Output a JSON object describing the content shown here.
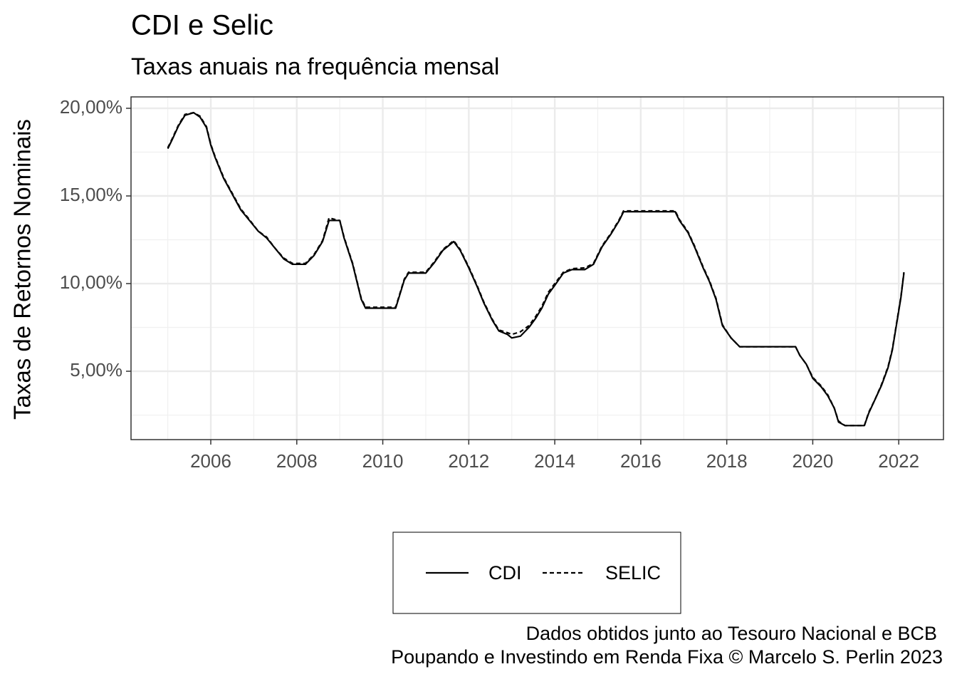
{
  "chart_data": {
    "type": "line",
    "title": "CDI e Selic",
    "subtitle": "Taxas anuais na frequência mensal",
    "y_label": "Taxas de Retornos Nominais",
    "caption": [
      "Dados obtidos junto ao Tesouro Nacional e BCB",
      "Poupando e Investindo em Renda Fixa © Marcelo S. Perlin 2023"
    ],
    "x": [
      2005.0,
      2005.1,
      2005.25,
      2005.4,
      2005.6,
      2005.75,
      2005.9,
      2006.0,
      2006.1,
      2006.3,
      2006.5,
      2006.7,
      2006.9,
      2007.1,
      2007.3,
      2007.5,
      2007.7,
      2007.9,
      2008.2,
      2008.4,
      2008.6,
      2008.75,
      2008.9,
      2009.0,
      2009.1,
      2009.3,
      2009.4,
      2009.5,
      2009.6,
      2010.0,
      2010.3,
      2010.4,
      2010.5,
      2010.6,
      2011.0,
      2011.2,
      2011.4,
      2011.55,
      2011.65,
      2011.8,
      2012.0,
      2012.2,
      2012.35,
      2012.55,
      2012.7,
      2012.9,
      2013.0,
      2013.2,
      2013.4,
      2013.55,
      2013.7,
      2013.85,
      2014.0,
      2014.2,
      2014.4,
      2014.7,
      2014.9,
      2015.1,
      2015.3,
      2015.5,
      2015.6,
      2016.0,
      2016.8,
      2016.9,
      2017.1,
      2017.25,
      2017.45,
      2017.6,
      2017.75,
      2017.9,
      2018.1,
      2018.3,
      2019.6,
      2019.7,
      2019.85,
      2020.0,
      2020.2,
      2020.35,
      2020.5,
      2020.6,
      2020.75,
      2021.2,
      2021.3,
      2021.45,
      2021.6,
      2021.75,
      2021.85,
      2021.95,
      2022.05,
      2022.12
    ],
    "series": [
      {
        "name": "CDI",
        "color": "#000000",
        "dash": "none",
        "values": [
          17.7,
          18.2,
          19.0,
          19.6,
          19.75,
          19.5,
          18.9,
          17.9,
          17.2,
          16.0,
          15.1,
          14.2,
          13.6,
          13.0,
          12.6,
          12.0,
          11.4,
          11.1,
          11.1,
          11.6,
          12.4,
          13.6,
          13.6,
          13.6,
          12.6,
          11.1,
          10.1,
          9.1,
          8.6,
          8.6,
          8.6,
          9.4,
          10.2,
          10.6,
          10.6,
          11.2,
          11.9,
          12.2,
          12.4,
          11.9,
          10.9,
          9.8,
          8.9,
          7.9,
          7.3,
          7.1,
          6.9,
          7.0,
          7.5,
          8.0,
          8.6,
          9.4,
          9.9,
          10.6,
          10.8,
          10.8,
          11.1,
          12.1,
          12.8,
          13.6,
          14.1,
          14.1,
          14.1,
          13.6,
          12.9,
          12.1,
          10.9,
          10.1,
          9.1,
          7.6,
          6.9,
          6.4,
          6.4,
          5.9,
          5.4,
          4.6,
          4.1,
          3.6,
          2.9,
          2.1,
          1.9,
          1.9,
          2.6,
          3.4,
          4.2,
          5.2,
          6.2,
          7.7,
          9.2,
          10.6
        ]
      },
      {
        "name": "SELIC",
        "color": "#000000",
        "dash": "6,4",
        "values": [
          17.75,
          18.25,
          19.05,
          19.65,
          19.75,
          19.55,
          18.95,
          17.95,
          17.25,
          16.05,
          15.15,
          14.25,
          13.65,
          13.0,
          12.65,
          12.0,
          11.45,
          11.15,
          11.15,
          11.65,
          12.45,
          13.75,
          13.65,
          13.6,
          12.65,
          11.15,
          10.15,
          9.15,
          8.65,
          8.65,
          8.65,
          9.45,
          10.25,
          10.65,
          10.65,
          11.25,
          11.95,
          12.25,
          12.45,
          11.95,
          10.95,
          9.85,
          8.95,
          7.95,
          7.35,
          7.2,
          7.1,
          7.25,
          7.6,
          8.1,
          8.7,
          9.5,
          10.0,
          10.65,
          10.85,
          10.9,
          11.15,
          12.15,
          12.85,
          13.65,
          14.15,
          14.15,
          14.15,
          13.65,
          12.95,
          12.15,
          10.95,
          10.15,
          9.15,
          7.65,
          6.9,
          6.4,
          6.4,
          5.9,
          5.4,
          4.65,
          4.15,
          3.65,
          2.9,
          2.15,
          1.9,
          1.9,
          2.65,
          3.4,
          4.25,
          5.25,
          6.25,
          7.75,
          9.25,
          10.65
        ]
      }
    ],
    "xlim": [
      2004.145,
      2023.04
    ],
    "xticks": [
      2006,
      2008,
      2010,
      2012,
      2014,
      2016,
      2018,
      2020,
      2022
    ],
    "ylim": [
      1.1,
      20.65
    ],
    "yticks": [
      {
        "value": 5,
        "label": "5,00%"
      },
      {
        "value": 10,
        "label": "10,00%"
      },
      {
        "value": 15,
        "label": "15,00%"
      },
      {
        "value": 20,
        "label": "20,00%"
      }
    ],
    "grid": true,
    "legend": "bottom"
  }
}
